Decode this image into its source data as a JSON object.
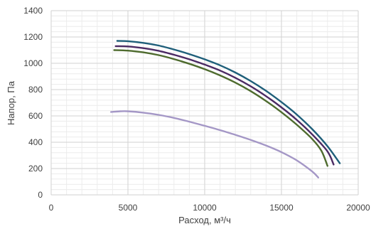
{
  "chart_data": {
    "type": "line",
    "xlabel": "Расход, м³/ч",
    "ylabel": "Напор, Па",
    "xlim": [
      0,
      20000
    ],
    "ylim": [
      0,
      1400
    ],
    "xticks": [
      0,
      5000,
      10000,
      15000,
      20000
    ],
    "yticks": [
      0,
      200,
      400,
      600,
      800,
      1000,
      1200,
      1400
    ],
    "grid": "major and minor",
    "legend": "none",
    "series": [
      {
        "color": "#1f5f7a",
        "points": [
          [
            4300,
            1170
          ],
          [
            5000,
            1168
          ],
          [
            6000,
            1155
          ],
          [
            7000,
            1135
          ],
          [
            8000,
            1105
          ],
          [
            9000,
            1070
          ],
          [
            10000,
            1030
          ],
          [
            11000,
            985
          ],
          [
            12000,
            930
          ],
          [
            13000,
            865
          ],
          [
            14000,
            790
          ],
          [
            15000,
            705
          ],
          [
            16000,
            610
          ],
          [
            17000,
            500
          ],
          [
            18000,
            370
          ],
          [
            18800,
            240
          ]
        ]
      },
      {
        "color": "#4b2a63",
        "points": [
          [
            4200,
            1130
          ],
          [
            5000,
            1128
          ],
          [
            6000,
            1115
          ],
          [
            7000,
            1095
          ],
          [
            8000,
            1065
          ],
          [
            9000,
            1030
          ],
          [
            10000,
            990
          ],
          [
            11000,
            945
          ],
          [
            12000,
            890
          ],
          [
            13000,
            825
          ],
          [
            14000,
            750
          ],
          [
            15000,
            665
          ],
          [
            16000,
            570
          ],
          [
            17000,
            460
          ],
          [
            18000,
            330
          ],
          [
            18400,
            230
          ]
        ]
      },
      {
        "color": "#4e6b2e",
        "points": [
          [
            4100,
            1100
          ],
          [
            5000,
            1096
          ],
          [
            6000,
            1083
          ],
          [
            7000,
            1062
          ],
          [
            8000,
            1032
          ],
          [
            9000,
            996
          ],
          [
            10000,
            955
          ],
          [
            11000,
            908
          ],
          [
            12000,
            853
          ],
          [
            13000,
            788
          ],
          [
            14000,
            713
          ],
          [
            15000,
            628
          ],
          [
            16000,
            533
          ],
          [
            17000,
            425
          ],
          [
            17600,
            335
          ],
          [
            18000,
            220
          ]
        ]
      },
      {
        "color": "#a497c6",
        "points": [
          [
            3900,
            630
          ],
          [
            4500,
            635
          ],
          [
            5000,
            635
          ],
          [
            6000,
            625
          ],
          [
            7000,
            608
          ],
          [
            8000,
            585
          ],
          [
            9000,
            556
          ],
          [
            10000,
            525
          ],
          [
            11000,
            492
          ],
          [
            12000,
            456
          ],
          [
            13000,
            418
          ],
          [
            14000,
            375
          ],
          [
            15000,
            325
          ],
          [
            16000,
            262
          ],
          [
            17000,
            178
          ],
          [
            17400,
            132
          ]
        ]
      }
    ]
  }
}
